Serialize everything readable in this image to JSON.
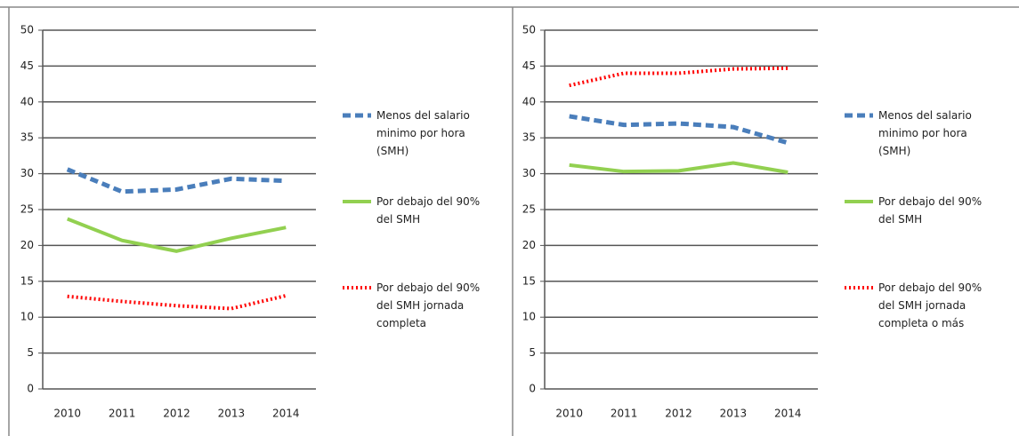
{
  "chart_data": [
    {
      "type": "line",
      "categories": [
        "2010",
        "2011",
        "2012",
        "2013",
        "2014"
      ],
      "series": [
        {
          "name": "Menos del salario minimo por hora (SMH)",
          "color": "#4a7ebb",
          "style": "dashed",
          "values": [
            30.6,
            27.5,
            27.8,
            29.3,
            29.0
          ]
        },
        {
          "name": "Por debajo del 90% del SMH",
          "color": "#92d050",
          "style": "solid",
          "values": [
            23.7,
            20.7,
            19.2,
            21.0,
            22.5
          ]
        },
        {
          "name": "Por debajo del 90% del SMH jornada completa",
          "color": "#ff0000",
          "style": "dotted",
          "values": [
            12.9,
            12.2,
            11.6,
            11.2,
            13.0
          ]
        }
      ],
      "ylim": [
        0,
        50
      ],
      "yticks": [
        0,
        5,
        10,
        15,
        20,
        25,
        30,
        35,
        40,
        45,
        50
      ],
      "grid": true,
      "legend": "right"
    },
    {
      "type": "line",
      "categories": [
        "2010",
        "2011",
        "2012",
        "2013",
        "2014"
      ],
      "series": [
        {
          "name": "Menos del salario minimo por hora (SMH)",
          "color": "#4a7ebb",
          "style": "dashed",
          "values": [
            38.0,
            36.8,
            37.0,
            36.5,
            34.3
          ]
        },
        {
          "name": "Por debajo del 90% del SMH",
          "color": "#92d050",
          "style": "solid",
          "values": [
            31.2,
            30.3,
            30.4,
            31.5,
            30.2
          ]
        },
        {
          "name": "Por debajo del 90% del SMH jornada completa o más",
          "color": "#ff0000",
          "style": "dotted",
          "values": [
            42.3,
            44.0,
            44.0,
            44.6,
            44.7
          ]
        }
      ],
      "ylim": [
        0,
        50
      ],
      "yticks": [
        0,
        5,
        10,
        15,
        20,
        25,
        30,
        35,
        40,
        45,
        50
      ],
      "grid": true,
      "legend": "right"
    }
  ]
}
